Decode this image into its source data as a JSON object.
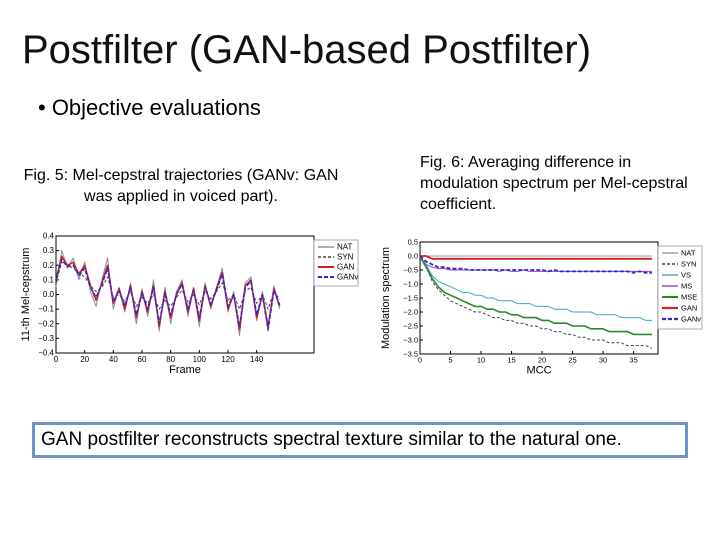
{
  "slide": {
    "title": "Postfilter (GAN-based Postfilter)",
    "bullet": "• Objective evaluations",
    "caption_fig5": "Fig. 5: Mel-cepstral trajectories (GANv: GAN was applied in voiced part).",
    "caption_fig6": "Fig. 6: Averaging difference in modulation spectrum per Mel-cepstral coefficient.",
    "conclusion": "GAN postfilter reconstructs spectral texture similar to the natural one."
  },
  "chart_data": [
    {
      "type": "line",
      "xlabel": "Frame",
      "ylabel": "11-th Mel-cepstrum",
      "xlim": [
        0,
        180
      ],
      "ylim": [
        -0.4,
        0.4
      ],
      "xticks": [
        "0",
        "20",
        "40",
        "60",
        "80",
        "100",
        "120",
        "140"
      ],
      "yticks": [
        "0.4",
        "0.3",
        "0.2",
        "0.1",
        "0.0",
        "−0.1",
        "−0.2",
        "−0.3",
        "−0.4"
      ],
      "legend_position": "right",
      "x": [
        0,
        4,
        8,
        12,
        16,
        20,
        24,
        28,
        32,
        36,
        40,
        44,
        48,
        52,
        56,
        60,
        64,
        68,
        72,
        76,
        80,
        84,
        88,
        92,
        96,
        100,
        104,
        108,
        112,
        116,
        120,
        124,
        128,
        132,
        136,
        140,
        144,
        148,
        152,
        156
      ],
      "series": [
        {
          "name": "NAT",
          "color": "#8c8c8c",
          "dash": "solid",
          "width": 1,
          "values": [
            0.05,
            0.3,
            0.18,
            0.25,
            0.1,
            0.22,
            0.02,
            -0.08,
            0.1,
            0.25,
            -0.1,
            0.05,
            -0.12,
            0.08,
            -0.2,
            0.04,
            -0.15,
            0.1,
            -0.25,
            0.05,
            -0.2,
            0.02,
            0.1,
            -0.15,
            0.05,
            -0.22,
            0.08,
            -0.1,
            0.05,
            0.18,
            -0.12,
            0.02,
            -0.28,
            0.08,
            0.12,
            -0.18,
            0.02,
            -0.25,
            0.06,
            -0.1
          ]
        },
        {
          "name": "SYN",
          "color": "#444444",
          "dash": "3,2",
          "width": 1,
          "values": [
            0.08,
            0.22,
            0.2,
            0.18,
            0.15,
            0.12,
            0.06,
            0.02,
            0.05,
            0.12,
            -0.02,
            0.0,
            -0.05,
            0.02,
            -0.08,
            -0.02,
            -0.06,
            0.0,
            -0.1,
            -0.04,
            -0.08,
            -0.02,
            0.03,
            -0.05,
            0.0,
            -0.07,
            0.02,
            -0.03,
            0.02,
            0.08,
            -0.04,
            0.0,
            -0.1,
            0.02,
            0.05,
            -0.06,
            0.0,
            -0.1,
            0.02,
            -0.03
          ]
        },
        {
          "name": "GAN",
          "color": "#d0202a",
          "dash": "solid",
          "width": 1.6,
          "values": [
            0.1,
            0.26,
            0.2,
            0.22,
            0.14,
            0.2,
            0.06,
            -0.04,
            0.08,
            0.2,
            -0.06,
            0.04,
            -0.1,
            0.06,
            -0.16,
            0.02,
            -0.12,
            0.06,
            -0.22,
            0.02,
            -0.16,
            0.0,
            0.08,
            -0.12,
            0.04,
            -0.18,
            0.06,
            -0.08,
            0.04,
            0.15,
            -0.1,
            0.0,
            -0.24,
            0.06,
            0.1,
            -0.16,
            0.0,
            -0.22,
            0.04,
            -0.08
          ]
        },
        {
          "name": "GANv",
          "color": "#2a2ad0",
          "dash": "4,2",
          "width": 1.6,
          "values": [
            0.1,
            0.24,
            0.19,
            0.2,
            0.13,
            0.18,
            0.05,
            -0.02,
            0.07,
            0.18,
            -0.05,
            0.03,
            -0.08,
            0.05,
            -0.14,
            0.01,
            -0.1,
            0.05,
            -0.2,
            0.01,
            -0.14,
            0.0,
            0.07,
            -0.1,
            0.03,
            -0.16,
            0.05,
            -0.07,
            0.03,
            0.14,
            -0.08,
            0.0,
            -0.22,
            0.05,
            0.09,
            -0.14,
            0.0,
            -0.24,
            0.03,
            -0.07
          ]
        }
      ]
    },
    {
      "type": "line",
      "xlabel": "MCC",
      "ylabel": "Modulation spectrum",
      "xlim": [
        0,
        39
      ],
      "ylim": [
        -3.5,
        0.5
      ],
      "xticks": [
        "0",
        "5",
        "10",
        "15",
        "20",
        "25",
        "30",
        "35"
      ],
      "yticks": [
        "0.5",
        "0.0",
        "−0.5",
        "−1.0",
        "−1.5",
        "−2.0",
        "−2.5",
        "−3.0",
        "−3.5"
      ],
      "legend_position": "right",
      "x": [
        0,
        1,
        2,
        3,
        4,
        5,
        6,
        7,
        8,
        9,
        10,
        11,
        12,
        13,
        14,
        15,
        16,
        17,
        18,
        19,
        20,
        21,
        22,
        23,
        24,
        25,
        26,
        27,
        28,
        29,
        30,
        31,
        32,
        33,
        34,
        35,
        36,
        37,
        38
      ],
      "series": [
        {
          "name": "NAT",
          "color": "#9a9a9a",
          "dash": "solid",
          "width": 1,
          "values": [
            0,
            0,
            0,
            0,
            0,
            0,
            0,
            0,
            0,
            0,
            0,
            0,
            0,
            0,
            0,
            0,
            0,
            0,
            0,
            0,
            0,
            0,
            0,
            0,
            0,
            0,
            0,
            0,
            0,
            0,
            0,
            0,
            0,
            0,
            0,
            0,
            0,
            0,
            0
          ]
        },
        {
          "name": "SYN",
          "color": "#444444",
          "dash": "3,2",
          "width": 1,
          "values": [
            0,
            -0.4,
            -0.9,
            -1.2,
            -1.4,
            -1.6,
            -1.7,
            -1.8,
            -1.9,
            -2.0,
            -2.0,
            -2.1,
            -2.2,
            -2.2,
            -2.3,
            -2.3,
            -2.4,
            -2.4,
            -2.5,
            -2.5,
            -2.6,
            -2.6,
            -2.7,
            -2.7,
            -2.8,
            -2.8,
            -2.9,
            -2.9,
            -3.0,
            -3.0,
            -3.0,
            -3.1,
            -3.1,
            -3.1,
            -3.2,
            -3.2,
            -3.2,
            -3.2,
            -3.3
          ]
        },
        {
          "name": "VS",
          "color": "#3aa8c8",
          "dash": "solid",
          "width": 1,
          "values": [
            0,
            -0.3,
            -0.7,
            -0.9,
            -1.0,
            -1.1,
            -1.2,
            -1.3,
            -1.3,
            -1.4,
            -1.4,
            -1.5,
            -1.5,
            -1.6,
            -1.6,
            -1.6,
            -1.7,
            -1.7,
            -1.7,
            -1.8,
            -1.8,
            -1.8,
            -1.9,
            -1.9,
            -1.9,
            -2.0,
            -2.0,
            -2.0,
            -2.0,
            -2.1,
            -2.1,
            -2.1,
            -2.1,
            -2.2,
            -2.2,
            -2.2,
            -2.2,
            -2.3,
            -2.3
          ]
        },
        {
          "name": "MS",
          "color": "#a040c0",
          "dash": "solid",
          "width": 1,
          "values": [
            -0.1,
            -0.3,
            -0.4,
            -0.45,
            -0.45,
            -0.5,
            -0.5,
            -0.5,
            -0.5,
            -0.5,
            -0.5,
            -0.5,
            -0.5,
            -0.55,
            -0.5,
            -0.55,
            -0.55,
            -0.5,
            -0.55,
            -0.55,
            -0.55,
            -0.55,
            -0.55,
            -0.55,
            -0.55,
            -0.55,
            -0.55,
            -0.55,
            -0.55,
            -0.55,
            -0.55,
            -0.55,
            -0.55,
            -0.55,
            -0.55,
            -0.55,
            -0.55,
            -0.55,
            -0.55
          ]
        },
        {
          "name": "MSE",
          "color": "#2a8a2a",
          "dash": "solid",
          "width": 1.6,
          "values": [
            0,
            -0.4,
            -0.8,
            -1.1,
            -1.3,
            -1.4,
            -1.5,
            -1.6,
            -1.7,
            -1.8,
            -1.8,
            -1.9,
            -1.9,
            -2.0,
            -2.0,
            -2.1,
            -2.1,
            -2.2,
            -2.2,
            -2.2,
            -2.3,
            -2.3,
            -2.4,
            -2.4,
            -2.4,
            -2.5,
            -2.5,
            -2.5,
            -2.6,
            -2.6,
            -2.6,
            -2.7,
            -2.7,
            -2.7,
            -2.7,
            -2.8,
            -2.8,
            -2.8,
            -2.8
          ]
        },
        {
          "name": "GAN",
          "color": "#d0202a",
          "dash": "solid",
          "width": 1.8,
          "values": [
            0,
            0.0,
            -0.1,
            -0.1,
            -0.1,
            -0.1,
            -0.1,
            -0.1,
            -0.1,
            -0.1,
            -0.1,
            -0.1,
            -0.1,
            -0.1,
            -0.1,
            -0.1,
            -0.1,
            -0.1,
            -0.1,
            -0.1,
            -0.1,
            -0.1,
            -0.1,
            -0.1,
            -0.1,
            -0.1,
            -0.1,
            -0.1,
            -0.1,
            -0.1,
            -0.1,
            -0.1,
            -0.1,
            -0.1,
            -0.1,
            -0.1,
            -0.1,
            -0.1,
            -0.1
          ]
        },
        {
          "name": "GANv",
          "color": "#2a2ad0",
          "dash": "4,2",
          "width": 1.8,
          "values": [
            0,
            -0.2,
            -0.3,
            -0.4,
            -0.4,
            -0.45,
            -0.45,
            -0.45,
            -0.5,
            -0.5,
            -0.5,
            -0.5,
            -0.5,
            -0.5,
            -0.5,
            -0.5,
            -0.5,
            -0.5,
            -0.5,
            -0.5,
            -0.5,
            -0.55,
            -0.5,
            -0.55,
            -0.55,
            -0.55,
            -0.55,
            -0.55,
            -0.55,
            -0.55,
            -0.55,
            -0.55,
            -0.55,
            -0.55,
            -0.55,
            -0.6,
            -0.55,
            -0.6,
            -0.6
          ]
        }
      ]
    }
  ]
}
